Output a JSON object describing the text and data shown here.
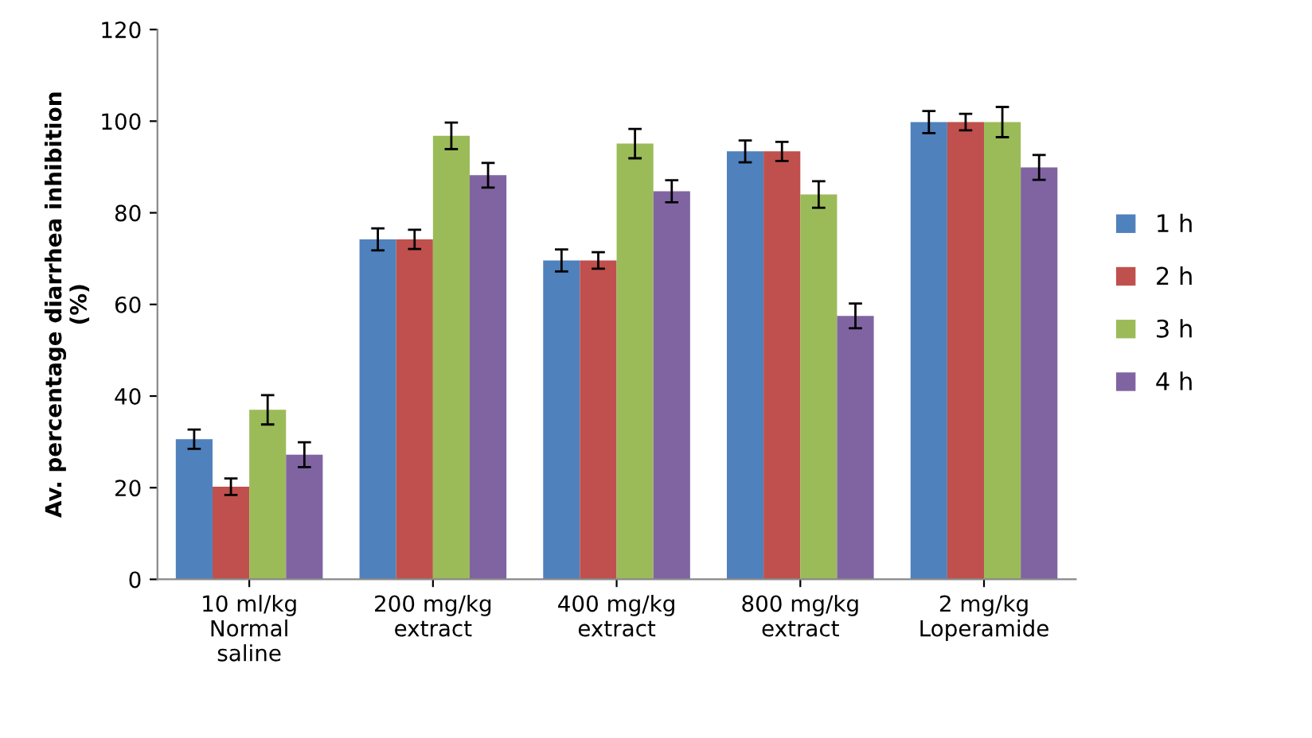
{
  "chart_data": {
    "type": "bar",
    "ylabel": "Av. percentage diarrhea inhibition\n(%)",
    "categories": [
      "10 ml/kg\nNormal\nsaline",
      "200 mg/kg\nextract",
      "400 mg/kg\nextract",
      "800 mg/kg\nextract",
      "2 mg/kg\nLoperamide"
    ],
    "series": [
      {
        "name": "1 h",
        "color": "#4f81bd",
        "values": [
          30.6,
          74.2,
          69.6,
          93.4,
          99.8
        ],
        "errors": [
          2.1,
          2.4,
          2.4,
          2.4,
          2.4
        ]
      },
      {
        "name": "2 h",
        "color": "#c0504d",
        "values": [
          20.2,
          74.2,
          69.6,
          93.4,
          99.8
        ],
        "errors": [
          1.8,
          2.1,
          1.8,
          2.1,
          1.8
        ]
      },
      {
        "name": "3 h",
        "color": "#9bbb59",
        "values": [
          37.0,
          96.8,
          95.1,
          84.0,
          99.8
        ],
        "errors": [
          3.2,
          2.9,
          3.2,
          2.9,
          3.3
        ]
      },
      {
        "name": "4 h",
        "color": "#8064a2",
        "values": [
          27.2,
          88.2,
          84.7,
          57.5,
          89.9
        ],
        "errors": [
          2.7,
          2.7,
          2.4,
          2.7,
          2.7
        ]
      }
    ],
    "ylim": [
      0,
      120
    ],
    "yticks": [
      0,
      20,
      40,
      60,
      80,
      100,
      120
    ],
    "grid": false,
    "legend": "right"
  }
}
